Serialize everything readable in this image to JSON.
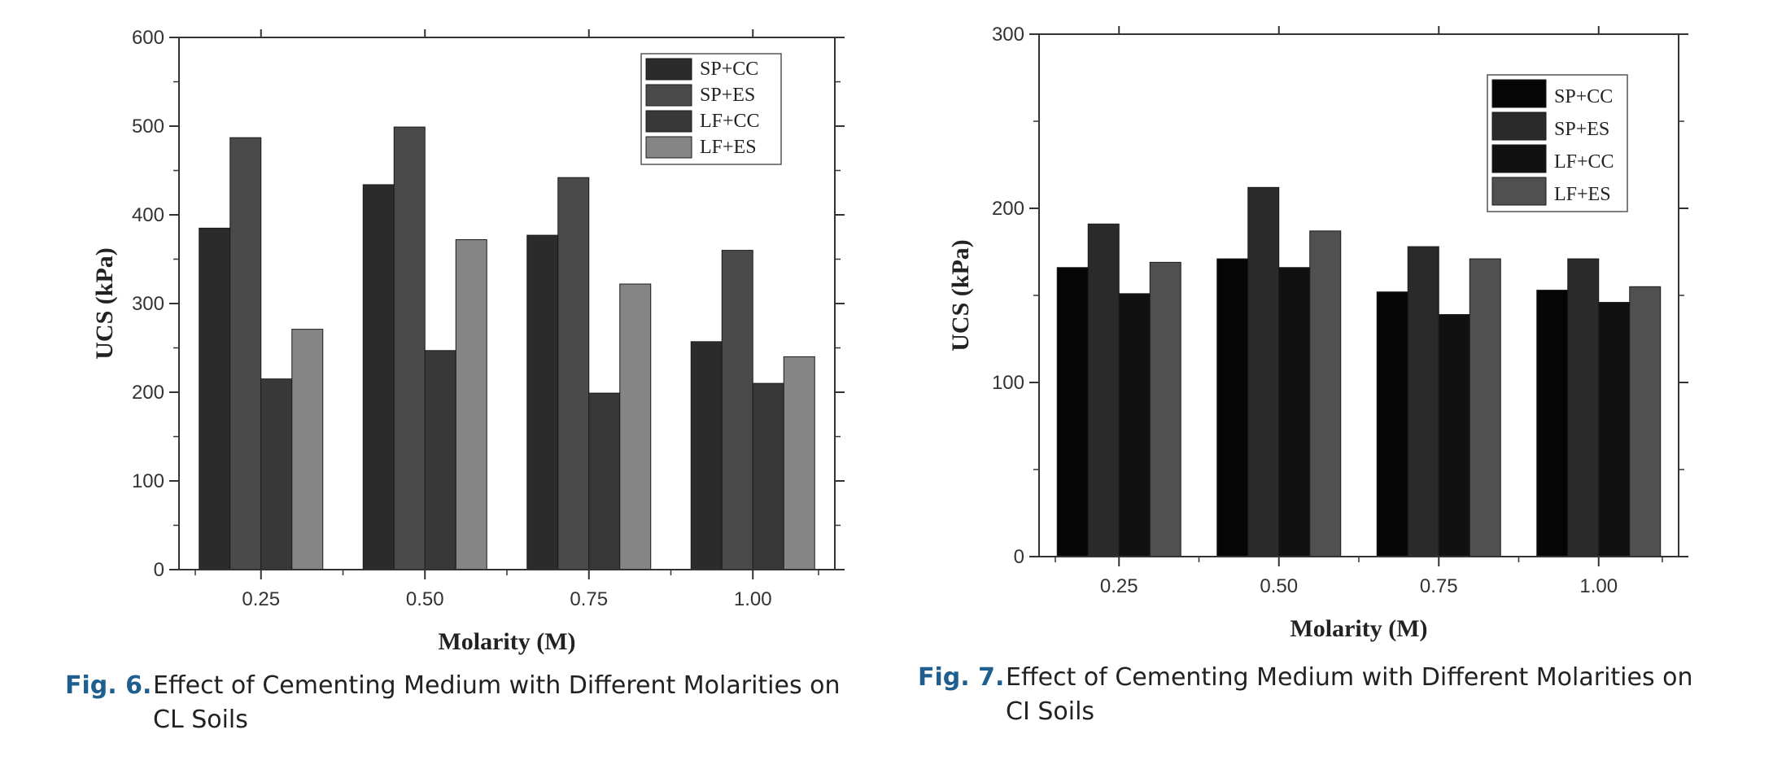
{
  "chart_data": [
    {
      "type": "bar",
      "caption_label": "Fig. 6.",
      "caption_text": "Effect of Cementing Medium with Different Molarities on CL Soils",
      "xlabel": "Molarity (M)",
      "ylabel": "UCS (kPa)",
      "categories": [
        "0.25",
        "0.50",
        "0.75",
        "1.00"
      ],
      "ylim": [
        0,
        600
      ],
      "yticks": [
        "0",
        "100",
        "200",
        "300",
        "400",
        "500",
        "600"
      ],
      "legend_position": "top-right",
      "colors": [
        "#2b2b2b",
        "#4a4a4a",
        "#383838",
        "#858585"
      ],
      "series": [
        {
          "name": "SP+CC",
          "values": [
            385,
            434,
            377,
            257
          ]
        },
        {
          "name": "SP+ES",
          "values": [
            487,
            499,
            442,
            360
          ]
        },
        {
          "name": "LF+CC",
          "values": [
            215,
            247,
            199,
            210
          ]
        },
        {
          "name": "LF+ES",
          "values": [
            271,
            372,
            322,
            240
          ]
        }
      ]
    },
    {
      "type": "bar",
      "caption_label": "Fig. 7.",
      "caption_text": "Effect of Cementing Medium with Different Molarities on CI Soils",
      "xlabel": "Molarity (M)",
      "ylabel": "UCS (kPa)",
      "categories": [
        "0.25",
        "0.50",
        "0.75",
        "1.00"
      ],
      "ylim": [
        0,
        300
      ],
      "yticks": [
        "0",
        "100",
        "200",
        "300"
      ],
      "legend_position": "top-right",
      "colors": [
        "#050505",
        "#2a2a2a",
        "#111111",
        "#505050"
      ],
      "series": [
        {
          "name": "SP+CC",
          "values": [
            166,
            171,
            152,
            153
          ]
        },
        {
          "name": "SP+ES",
          "values": [
            191,
            212,
            178,
            171
          ]
        },
        {
          "name": "LF+CC",
          "values": [
            151,
            166,
            139,
            146
          ]
        },
        {
          "name": "LF+ES",
          "values": [
            169,
            187,
            171,
            155
          ]
        }
      ]
    }
  ]
}
